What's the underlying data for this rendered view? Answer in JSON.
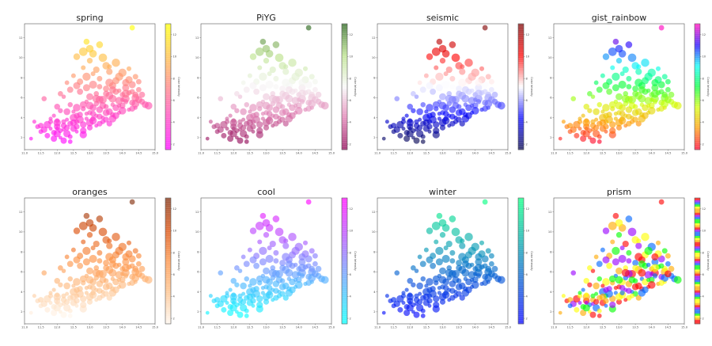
{
  "chart_data": [
    {
      "type": "scatter",
      "title": "spring",
      "cmap": "spring",
      "colorbar_label": "Color Intensity",
      "colorbar_ticks": [
        "2",
        "4",
        "6",
        "8",
        "10",
        "12"
      ]
    },
    {
      "type": "scatter",
      "title": "PiYG",
      "cmap": "PiYG",
      "colorbar_label": "Color Intensity",
      "colorbar_ticks": [
        "2",
        "4",
        "6",
        "8",
        "10",
        "12"
      ]
    },
    {
      "type": "scatter",
      "title": "seismic",
      "cmap": "seismic",
      "colorbar_label": "Color Intensity",
      "colorbar_ticks": [
        "2",
        "4",
        "6",
        "8",
        "10",
        "12"
      ]
    },
    {
      "type": "scatter",
      "title": "gist_rainbow",
      "cmap": "gist_rainbow",
      "colorbar_label": "Color Intensity",
      "colorbar_ticks": [
        "2",
        "4",
        "6",
        "8",
        "10",
        "12"
      ]
    },
    {
      "type": "scatter",
      "title": "oranges",
      "cmap": "oranges",
      "colorbar_label": "Color Intensity",
      "colorbar_ticks": [
        "2",
        "4",
        "6",
        "8",
        "10",
        "12"
      ]
    },
    {
      "type": "scatter",
      "title": "cool",
      "cmap": "cool",
      "colorbar_label": "Color Intensity",
      "colorbar_ticks": [
        "2",
        "4",
        "6",
        "8",
        "10",
        "12"
      ]
    },
    {
      "type": "scatter",
      "title": "winter",
      "cmap": "winter",
      "colorbar_label": "Color Intensity",
      "colorbar_ticks": [
        "2",
        "4",
        "6",
        "8",
        "10",
        "12"
      ]
    },
    {
      "type": "scatter",
      "title": "prism",
      "cmap": "prism",
      "colorbar_label": "Color Intensity",
      "colorbar_ticks": [
        "2",
        "4",
        "6",
        "8",
        "10",
        "12"
      ]
    }
  ],
  "shared": {
    "xlim": [
      11,
      15
    ],
    "ylim": [
      0.8,
      13.4
    ],
    "x_ticks": [
      "11.0",
      "11.5",
      "12.0",
      "12.5",
      "13.0",
      "13.5",
      "14.0",
      "14.5",
      "15.0"
    ],
    "y_ticks": [
      "2",
      "4",
      "6",
      "8",
      "10",
      "12"
    ],
    "points": [
      [
        11.2,
        1.9,
        1.9
      ],
      [
        11.4,
        3.1,
        3.0
      ],
      [
        11.5,
        3.2,
        3.3
      ],
      [
        11.6,
        2.8,
        2.9
      ],
      [
        11.7,
        3.3,
        3.1
      ],
      [
        11.8,
        2.9,
        2.7
      ],
      [
        11.8,
        3.6,
        3.5
      ],
      [
        11.9,
        2.5,
        2.3
      ],
      [
        12.0,
        3.1,
        3.0
      ],
      [
        12.0,
        3.5,
        3.4
      ],
      [
        12.1,
        2.0,
        2.0
      ],
      [
        12.1,
        2.7,
        2.6
      ],
      [
        12.2,
        3.2,
        3.3
      ],
      [
        12.2,
        1.7,
        1.6
      ],
      [
        12.3,
        2.4,
        2.5
      ],
      [
        12.3,
        3.8,
        3.7
      ],
      [
        12.4,
        2.1,
        2.2
      ],
      [
        12.4,
        3.4,
        3.3
      ],
      [
        12.5,
        2.9,
        3.0
      ],
      [
        12.5,
        4.0,
        4.1
      ],
      [
        12.6,
        2.6,
        2.5
      ],
      [
        12.6,
        3.6,
        3.8
      ],
      [
        12.7,
        4.3,
        4.2
      ],
      [
        12.8,
        3.3,
        3.4
      ],
      [
        12.8,
        2.3,
        2.4
      ],
      [
        12.9,
        3.9,
        4.0
      ],
      [
        13.0,
        4.5,
        4.6
      ],
      [
        13.0,
        3.0,
        3.1
      ],
      [
        13.1,
        5.0,
        4.9
      ],
      [
        13.1,
        3.7,
        3.6
      ],
      [
        13.2,
        4.2,
        4.3
      ],
      [
        13.2,
        5.4,
        5.5
      ],
      [
        13.3,
        3.4,
        3.5
      ],
      [
        13.3,
        4.8,
        4.7
      ],
      [
        13.4,
        5.8,
        5.9
      ],
      [
        13.4,
        4.0,
        4.1
      ],
      [
        13.5,
        5.1,
        5.2
      ],
      [
        13.5,
        3.8,
        3.7
      ],
      [
        13.6,
        4.6,
        4.5
      ],
      [
        13.6,
        6.2,
        6.1
      ],
      [
        13.7,
        5.3,
        5.4
      ],
      [
        13.7,
        4.3,
        4.4
      ],
      [
        13.8,
        6.6,
        6.7
      ],
      [
        13.8,
        5.0,
        4.9
      ],
      [
        13.9,
        5.7,
        5.8
      ],
      [
        13.9,
        4.5,
        4.4
      ],
      [
        14.0,
        6.3,
        6.2
      ],
      [
        14.0,
        5.2,
        5.3
      ],
      [
        14.1,
        7.0,
        6.9
      ],
      [
        14.1,
        5.9,
        6.0
      ],
      [
        14.2,
        4.8,
        4.7
      ],
      [
        14.2,
        6.5,
        6.6
      ],
      [
        14.3,
        5.5,
        5.6
      ],
      [
        14.3,
        7.3,
        7.2
      ],
      [
        14.4,
        6.0,
        6.1
      ],
      [
        14.4,
        5.0,
        4.9
      ],
      [
        14.5,
        6.8,
        6.9
      ],
      [
        14.6,
        5.6,
        5.5
      ],
      [
        14.7,
        5.3,
        5.4
      ],
      [
        14.8,
        5.2,
        5.1
      ],
      [
        12.2,
        6.1,
        6.0
      ],
      [
        12.4,
        5.3,
        5.2
      ],
      [
        12.7,
        7.6,
        7.7
      ],
      [
        12.9,
        7.0,
        7.1
      ],
      [
        13.1,
        7.3,
        7.2
      ],
      [
        12.5,
        8.2,
        8.3
      ],
      [
        13.3,
        7.9,
        8.0
      ],
      [
        13.6,
        8.6,
        8.5
      ],
      [
        13.8,
        7.7,
        7.8
      ],
      [
        14.0,
        8.5,
        8.4
      ],
      [
        14.2,
        8.9,
        9.0
      ],
      [
        14.4,
        8.1,
        8.2
      ],
      [
        13.2,
        8.8,
        8.7
      ],
      [
        13.5,
        9.2,
        9.3
      ],
      [
        13.8,
        9.5,
        9.4
      ],
      [
        12.8,
        9.0,
        9.1
      ],
      [
        13.0,
        9.7,
        9.6
      ],
      [
        12.6,
        10.1,
        10.0
      ],
      [
        13.1,
        10.4,
        10.5
      ],
      [
        13.4,
        10.0,
        10.1
      ],
      [
        13.6,
        9.1,
        9.2
      ],
      [
        12.9,
        11.6,
        11.7
      ],
      [
        13.3,
        11.3,
        11.2
      ],
      [
        13.0,
        10.9,
        10.8
      ],
      [
        12.8,
        10.6,
        10.5
      ],
      [
        14.3,
        13.0,
        13.0
      ],
      [
        11.6,
        5.9,
        5.8
      ],
      [
        12.0,
        5.1,
        5.0
      ],
      [
        12.3,
        4.6,
        4.7
      ],
      [
        12.6,
        5.0,
        4.9
      ],
      [
        12.9,
        5.6,
        5.5
      ],
      [
        13.2,
        6.4,
        6.3
      ],
      [
        13.5,
        6.9,
        7.0
      ],
      [
        13.7,
        7.2,
        7.3
      ],
      [
        14.1,
        6.4,
        6.5
      ],
      [
        11.9,
        4.2,
        4.1
      ],
      [
        12.1,
        4.7,
        4.6
      ],
      [
        12.7,
        6.6,
        6.5
      ],
      [
        13.0,
        6.1,
        6.2
      ],
      [
        13.3,
        5.8,
        5.7
      ],
      [
        13.9,
        6.7,
        6.8
      ],
      [
        14.5,
        7.6,
        7.5
      ],
      [
        14.4,
        6.3,
        6.4
      ],
      [
        14.2,
        7.8,
        7.9
      ],
      [
        13.6,
        7.5,
        7.4
      ],
      [
        11.3,
        3.6,
        3.5
      ],
      [
        11.5,
        2.6,
        2.5
      ],
      [
        11.7,
        2.2,
        2.1
      ],
      [
        11.9,
        1.9,
        1.8
      ],
      [
        12.0,
        2.4,
        2.3
      ],
      [
        12.2,
        2.8,
        2.9
      ],
      [
        12.4,
        1.6,
        1.5
      ],
      [
        12.6,
        3.1,
        3.2
      ],
      [
        12.8,
        2.7,
        2.8
      ],
      [
        13.0,
        3.5,
        3.6
      ],
      [
        13.2,
        3.2,
        3.1
      ],
      [
        13.4,
        3.6,
        3.5
      ],
      [
        13.6,
        3.4,
        3.3
      ],
      [
        13.8,
        4.2,
        4.1
      ],
      [
        14.0,
        4.7,
        4.6
      ],
      [
        12.5,
        4.6,
        4.5
      ],
      [
        12.8,
        4.9,
        4.8
      ],
      [
        13.1,
        4.4,
        4.3
      ],
      [
        13.4,
        5.2,
        5.3
      ],
      [
        13.7,
        5.9,
        6.0
      ],
      [
        14.0,
        5.8,
        5.7
      ],
      [
        14.3,
        6.6,
        6.7
      ],
      [
        14.6,
        6.3,
        6.2
      ],
      [
        14.1,
        7.5,
        7.4
      ],
      [
        13.9,
        8.1,
        8.2
      ],
      [
        12.3,
        7.5,
        7.6
      ],
      [
        12.1,
        6.4,
        6.5
      ],
      [
        12.4,
        6.8,
        6.9
      ],
      [
        12.6,
        7.2,
        7.1
      ],
      [
        12.9,
        8.1,
        8.0
      ],
      [
        13.1,
        8.4,
        8.5
      ],
      [
        13.3,
        7.1,
        7.2
      ],
      [
        13.5,
        6.4,
        6.3
      ],
      [
        13.7,
        6.8,
        6.7
      ],
      [
        14.4,
        5.4,
        5.5
      ],
      [
        11.8,
        3.9,
        3.8
      ],
      [
        12.0,
        3.7,
        3.6
      ],
      [
        12.3,
        3.0,
        3.1
      ],
      [
        12.5,
        3.5,
        3.4
      ],
      [
        12.7,
        3.8,
        3.9
      ],
      [
        12.9,
        4.4,
        4.5
      ],
      [
        13.1,
        3.9,
        4.0
      ],
      [
        13.3,
        4.1,
        4.2
      ],
      [
        13.5,
        4.5,
        4.6
      ],
      [
        13.7,
        3.9,
        4.0
      ],
      [
        13.9,
        5.2,
        5.1
      ],
      [
        14.1,
        5.6,
        5.5
      ],
      [
        14.3,
        4.9,
        5.0
      ],
      [
        14.5,
        5.8,
        5.9
      ],
      [
        13.2,
        5.9,
        6.0
      ],
      [
        12.0,
        2.9,
        2.8
      ],
      [
        12.2,
        3.6,
        3.7
      ],
      [
        12.6,
        4.2,
        4.3
      ],
      [
        12.8,
        5.3,
        5.2
      ],
      [
        13.0,
        5.2,
        5.1
      ]
    ]
  }
}
